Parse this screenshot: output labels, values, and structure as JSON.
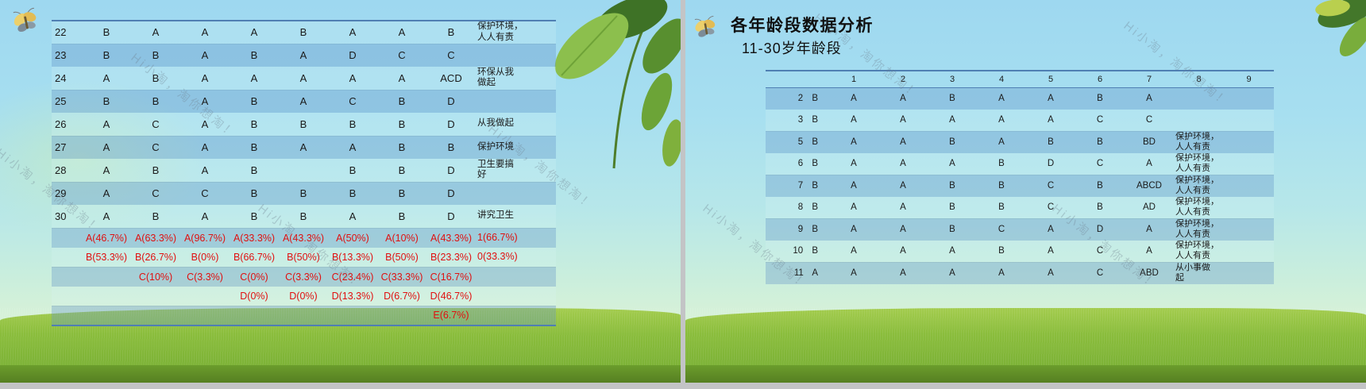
{
  "watermark": "Hi小淘，淘你想淘！",
  "colors": {
    "percent_red": "#e01010",
    "table_border_blue": "#4f7fb3",
    "row_stripe_blue": "#8cbfde",
    "sky_blue": "#a7dff0",
    "grass_green": "#8abd3c",
    "grass_dark_green": "#567f22"
  },
  "left_slide": {
    "table": {
      "rows": [
        {
          "cells": [
            {
              "t": "22",
              "cls": "num"
            },
            "B",
            "A",
            "A",
            "A",
            "B",
            "A",
            "A",
            "B",
            {
              "t": "保护环境，\n人人有责",
              "cls": "zh"
            }
          ]
        },
        {
          "cells": [
            {
              "t": "23",
              "cls": "num"
            },
            "B",
            "B",
            "A",
            "B",
            "A",
            "D",
            "C",
            "C",
            {
              "t": "",
              "cls": "zh"
            }
          ]
        },
        {
          "cells": [
            {
              "t": "24",
              "cls": "num"
            },
            "A",
            "B",
            "A",
            "A",
            "A",
            "A",
            "A",
            "ACD",
            {
              "t": "环保从我\n做起",
              "cls": "zh"
            }
          ]
        },
        {
          "cells": [
            {
              "t": "25",
              "cls": "num"
            },
            "B",
            "B",
            "A",
            "B",
            "A",
            "C",
            "B",
            "D",
            {
              "t": "",
              "cls": "zh"
            }
          ]
        },
        {
          "cells": [
            {
              "t": "26",
              "cls": "num"
            },
            "A",
            "C",
            "A",
            "B",
            "B",
            "B",
            "B",
            "D",
            {
              "t": "从我做起",
              "cls": "zh"
            }
          ]
        },
        {
          "cells": [
            {
              "t": "27",
              "cls": "num"
            },
            "A",
            "C",
            "A",
            "B",
            "A",
            "A",
            "B",
            "B",
            {
              "t": "保护环境",
              "cls": "zh"
            }
          ]
        },
        {
          "cells": [
            {
              "t": "28",
              "cls": "num"
            },
            "A",
            "B",
            "A",
            "B",
            "",
            "B",
            "B",
            "D",
            {
              "t": "卫生要搞\n好",
              "cls": "zh"
            }
          ]
        },
        {
          "cells": [
            {
              "t": "29",
              "cls": "num"
            },
            "A",
            "C",
            "C",
            "B",
            "B",
            "B",
            "B",
            "D",
            {
              "t": "",
              "cls": "zh"
            }
          ]
        },
        {
          "cells": [
            {
              "t": "30",
              "cls": "num"
            },
            "A",
            "B",
            "A",
            "B",
            "B",
            "A",
            "B",
            "D",
            {
              "t": "讲究卫生",
              "cls": "zh"
            }
          ]
        },
        {
          "cls": "pct",
          "cells": [
            "",
            "A(46.7%)",
            "A(63.3%)",
            "A(96.7%)",
            "A(33.3%)",
            "A(43.3%)",
            "A(50%)",
            "A(10%)",
            "A(43.3%)",
            {
              "t": "1(66.7%)",
              "cls": "zh"
            }
          ]
        },
        {
          "cls": "pct",
          "cells": [
            "",
            "B(53.3%)",
            "B(26.7%)",
            "B(0%)",
            "B(66.7%)",
            "B(50%)",
            "B(13.3%)",
            "B(50%)",
            "B(23.3%)",
            {
              "t": "0(33.3%)",
              "cls": "zh"
            }
          ]
        },
        {
          "cls": "pct",
          "cells": [
            "",
            "",
            "C(10%)",
            "C(3.3%)",
            "C(0%)",
            "C(3.3%)",
            "C(23.4%)",
            "C(33.3%)",
            "C(16.7%)",
            {
              "t": "",
              "cls": "zh"
            }
          ]
        },
        {
          "cls": "pct",
          "cells": [
            "",
            "",
            "",
            "",
            "D(0%)",
            "D(0%)",
            "D(13.3%)",
            "D(6.7%)",
            "D(46.7%)",
            {
              "t": "",
              "cls": "zh"
            }
          ]
        },
        {
          "cls": "pct",
          "cells": [
            "",
            "",
            "",
            "",
            "",
            "",
            "",
            "",
            "E(6.7%)",
            {
              "t": "",
              "cls": "zh"
            }
          ]
        }
      ]
    }
  },
  "right_slide": {
    "title": "各年龄段数据分析",
    "subtitle": "11-30岁年龄段",
    "table": {
      "rows": [
        {
          "cls": "hdr",
          "cells": [
            "",
            "1",
            "2",
            "3",
            "4",
            "5",
            "6",
            "7",
            "8",
            "9"
          ]
        },
        {
          "cells": [
            {
              "t": "2 B",
              "cls": "lbl"
            },
            "A",
            "A",
            "B",
            "A",
            "A",
            "B",
            "A",
            {
              "t": "",
              "cls": "zhr",
              "span": 2
            }
          ]
        },
        {
          "cells": [
            {
              "t": "3 B",
              "cls": "lbl"
            },
            "A",
            "A",
            "A",
            "A",
            "A",
            "C",
            "C",
            {
              "t": "",
              "cls": "zhr",
              "span": 2
            }
          ]
        },
        {
          "cells": [
            {
              "t": "5 B",
              "cls": "lbl"
            },
            "A",
            "A",
            "B",
            "A",
            "B",
            "B",
            "BD",
            {
              "t": "保护环境，\n人人有责",
              "cls": "zhr",
              "span": 2
            }
          ]
        },
        {
          "cells": [
            {
              "t": "6 B",
              "cls": "lbl"
            },
            "A",
            "A",
            "A",
            "B",
            "D",
            "C",
            "A",
            {
              "t": "保护环境，\n人人有责",
              "cls": "zhr",
              "span": 2
            }
          ]
        },
        {
          "cells": [
            {
              "t": "7 B",
              "cls": "lbl"
            },
            "A",
            "A",
            "B",
            "B",
            "C",
            "B",
            "ABCD",
            {
              "t": "保护环境，\n人人有责",
              "cls": "zhr",
              "span": 2
            }
          ]
        },
        {
          "cells": [
            {
              "t": "8 B",
              "cls": "lbl"
            },
            "A",
            "A",
            "B",
            "B",
            "C",
            "B",
            "AD",
            {
              "t": "保护环境，\n人人有责",
              "cls": "zhr",
              "span": 2
            }
          ]
        },
        {
          "cells": [
            {
              "t": "9 B",
              "cls": "lbl"
            },
            "A",
            "A",
            "B",
            "C",
            "A",
            "D",
            "A",
            {
              "t": "保护环境，\n人人有责",
              "cls": "zhr",
              "span": 2
            }
          ]
        },
        {
          "cells": [
            {
              "t": "10 B",
              "cls": "lbl"
            },
            "A",
            "A",
            "A",
            "B",
            "A",
            "C",
            "A",
            {
              "t": "保护环境，\n人人有责",
              "cls": "zhr",
              "span": 2
            }
          ]
        },
        {
          "cells": [
            {
              "t": "11 A",
              "cls": "lbl"
            },
            "A",
            "A",
            "A",
            "A",
            "A",
            "C",
            "ABD",
            {
              "t": "从小事做\n起",
              "cls": "zhr",
              "span": 2
            }
          ]
        }
      ]
    }
  }
}
